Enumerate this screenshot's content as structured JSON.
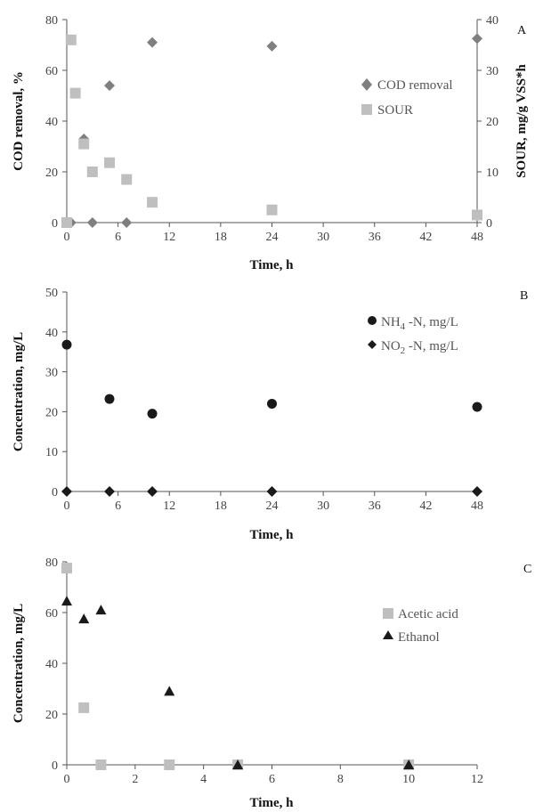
{
  "chart_data": [
    {
      "panel": "A",
      "type": "scatter",
      "xlabel": "Time, h",
      "ylabel": "COD removal, %",
      "y2label": "SOUR, mg/g VSS*h",
      "xlim": [
        0,
        48
      ],
      "ylim": [
        0,
        80
      ],
      "y2lim": [
        0,
        40
      ],
      "xticks": [
        0,
        6,
        12,
        18,
        24,
        30,
        36,
        42,
        48
      ],
      "yticks": [
        0,
        20,
        40,
        60,
        80
      ],
      "y2ticks": [
        0,
        10,
        20,
        30,
        40
      ],
      "grid": false,
      "legend": "right",
      "series": [
        {
          "name": "COD removal",
          "axis": "left",
          "marker": "diamond",
          "color": "#7f7f7f",
          "x": [
            0,
            0.5,
            2,
            3,
            5,
            7,
            10,
            24,
            48
          ],
          "y": [
            0,
            0,
            33,
            0,
            54,
            0,
            71,
            69.5,
            72.5
          ]
        },
        {
          "name": "SOUR",
          "axis": "right",
          "marker": "square",
          "color": "#bfbfbf",
          "x": [
            0,
            0.5,
            1,
            2,
            3,
            5,
            7,
            10,
            24,
            48
          ],
          "y": [
            0,
            36,
            25.5,
            15.5,
            10,
            11.8,
            8.5,
            4,
            2.5,
            1.5
          ]
        }
      ]
    },
    {
      "panel": "B",
      "type": "scatter",
      "xlabel": "Time, h",
      "ylabel": "Concentration, mg/L",
      "xlim": [
        0,
        48
      ],
      "ylim": [
        0,
        50
      ],
      "xticks": [
        0,
        6,
        12,
        18,
        24,
        30,
        36,
        42,
        48
      ],
      "yticks": [
        0,
        10,
        20,
        30,
        40,
        50
      ],
      "grid": false,
      "legend": "top-right",
      "series": [
        {
          "name": "NH4 -N, mg/L",
          "name_main": "NH",
          "name_sub": "4",
          "name_rest": " -N, mg/L",
          "marker": "circle",
          "color": "#1a1a1a",
          "x": [
            0,
            5,
            10,
            24,
            48
          ],
          "y": [
            36.8,
            23.2,
            19.5,
            22,
            21.2
          ]
        },
        {
          "name": "NO2 -N, mg/L",
          "name_main": "NO",
          "name_sub": "2",
          "name_rest": " -N, mg/L",
          "marker": "diamond",
          "color": "#1a1a1a",
          "x": [
            0,
            5,
            10,
            24,
            48
          ],
          "y": [
            0,
            0,
            0,
            0,
            0
          ]
        }
      ]
    },
    {
      "panel": "C",
      "type": "scatter",
      "xlabel": "Time, h",
      "ylabel": "Concentration, mg/L",
      "xlim": [
        0,
        12
      ],
      "ylim": [
        0,
        80
      ],
      "xticks": [
        0,
        2,
        4,
        6,
        8,
        10,
        12
      ],
      "yticks": [
        0,
        20,
        40,
        60,
        80
      ],
      "grid": false,
      "legend": "right",
      "series": [
        {
          "name": "Acetic acid",
          "marker": "square",
          "color": "#bfbfbf",
          "x": [
            0,
            0.5,
            1,
            3,
            5,
            10
          ],
          "y": [
            77.5,
            22.5,
            0,
            0,
            0,
            0
          ]
        },
        {
          "name": "Ethanol",
          "marker": "triangle",
          "color": "#1a1a1a",
          "x": [
            0,
            0.5,
            1,
            3,
            5,
            10
          ],
          "y": [
            64.5,
            57.5,
            61,
            29,
            0,
            0
          ]
        }
      ]
    }
  ]
}
